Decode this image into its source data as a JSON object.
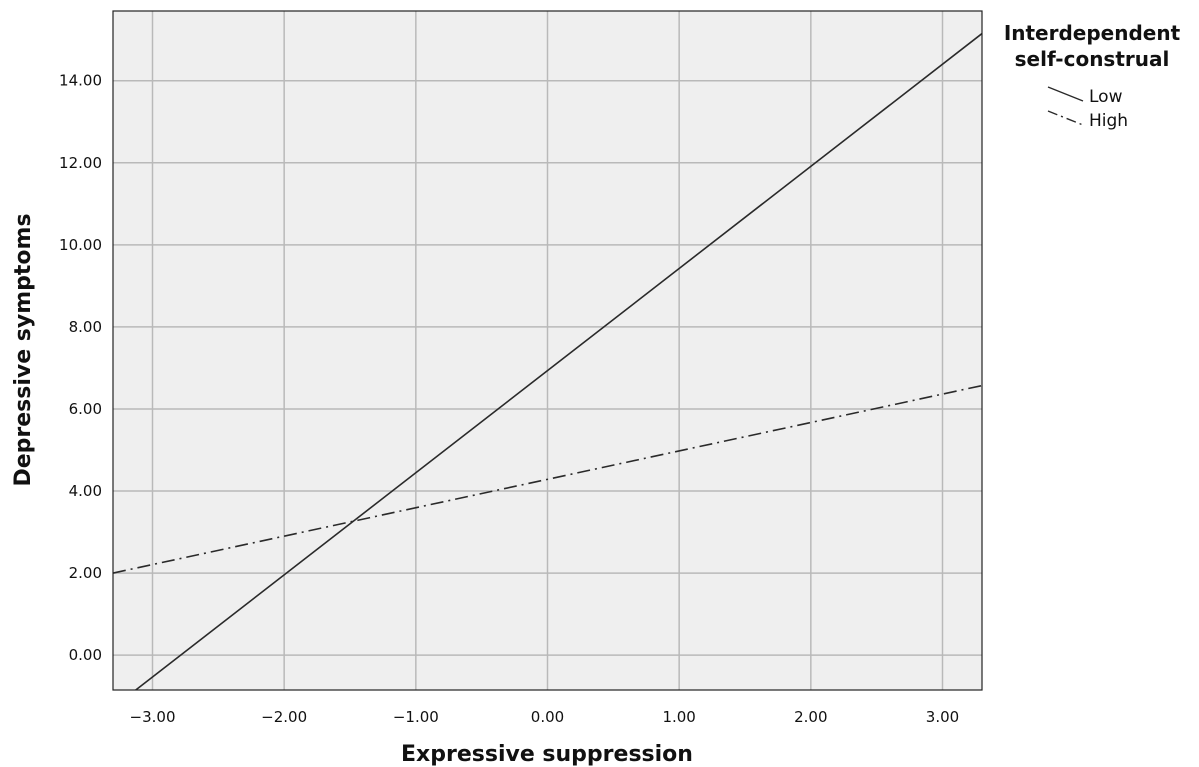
{
  "chart_data": {
    "type": "line",
    "xlabel": "Expressive suppression",
    "ylabel": "Depressive symptoms",
    "xlim": [
      -3.3,
      3.3
    ],
    "ylim": [
      -0.85,
      15.7
    ],
    "x_ticks": [
      -3,
      -2,
      -1,
      0,
      1,
      2,
      3
    ],
    "x_tick_labels": [
      "−3.00",
      "−2.00",
      "−1.00",
      "0.00",
      "1.00",
      "2.00",
      "3.00"
    ],
    "y_ticks": [
      0,
      2,
      4,
      6,
      8,
      10,
      12,
      14
    ],
    "y_tick_labels": [
      "0.00",
      "2.00",
      "4.00",
      "6.00",
      "8.00",
      "10.00",
      "12.00",
      "14.00"
    ],
    "grid": true,
    "legend": {
      "title_lines": [
        "Interdependent",
        "self-construal"
      ],
      "placement": "right"
    },
    "series": [
      {
        "name": "Low",
        "style": "solid",
        "x": [
          -3.3,
          3.3
        ],
        "y": [
          -1.28,
          15.15
        ]
      },
      {
        "name": "High",
        "style": "dash-dot",
        "x": [
          -3.3,
          3.3
        ],
        "y": [
          2.0,
          6.57
        ]
      }
    ]
  }
}
